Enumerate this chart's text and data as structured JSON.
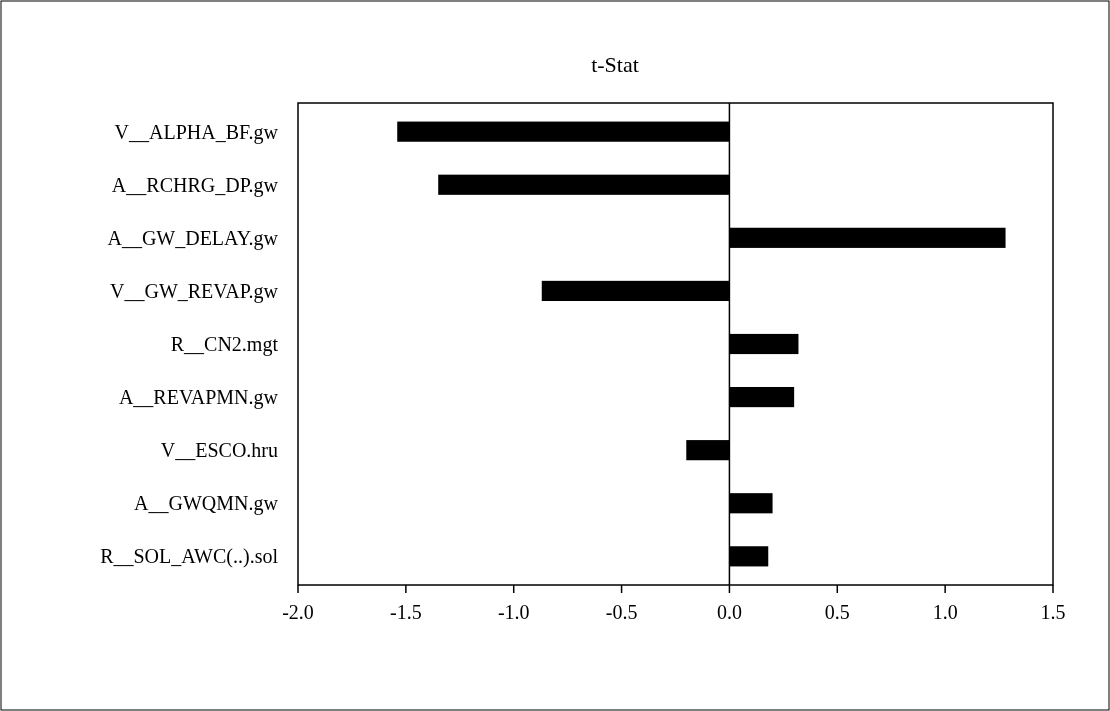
{
  "chart_data": {
    "type": "bar",
    "orientation": "horizontal",
    "title": "t-Stat",
    "categories": [
      "V__ALPHA_BF.gw",
      "A__RCHRG_DP.gw",
      "A__GW_DELAY.gw",
      "V__GW_REVAP.gw",
      "R__CN2.mgt",
      "A__REVAPMN.gw",
      "V__ESCO.hru",
      "A__GWQMN.gw",
      "R__SOL_AWC(..).sol"
    ],
    "values": [
      -1.54,
      -1.35,
      1.28,
      -0.87,
      0.32,
      0.3,
      -0.2,
      0.2,
      0.18
    ],
    "color": "#000000",
    "xlim": [
      -2.0,
      1.5
    ],
    "xticks": [
      {
        "value": -2,
        "label": "-2.0"
      },
      {
        "value": -1.5,
        "label": "-1.5"
      },
      {
        "value": -1,
        "label": "-1.0"
      },
      {
        "value": -0.5,
        "label": "-0.5"
      },
      {
        "value": 0,
        "label": "0.0"
      },
      {
        "value": 0.5,
        "label": "0.5"
      },
      {
        "value": 1,
        "label": "1.0"
      },
      {
        "value": 1.5,
        "label": "1.5"
      }
    ]
  }
}
